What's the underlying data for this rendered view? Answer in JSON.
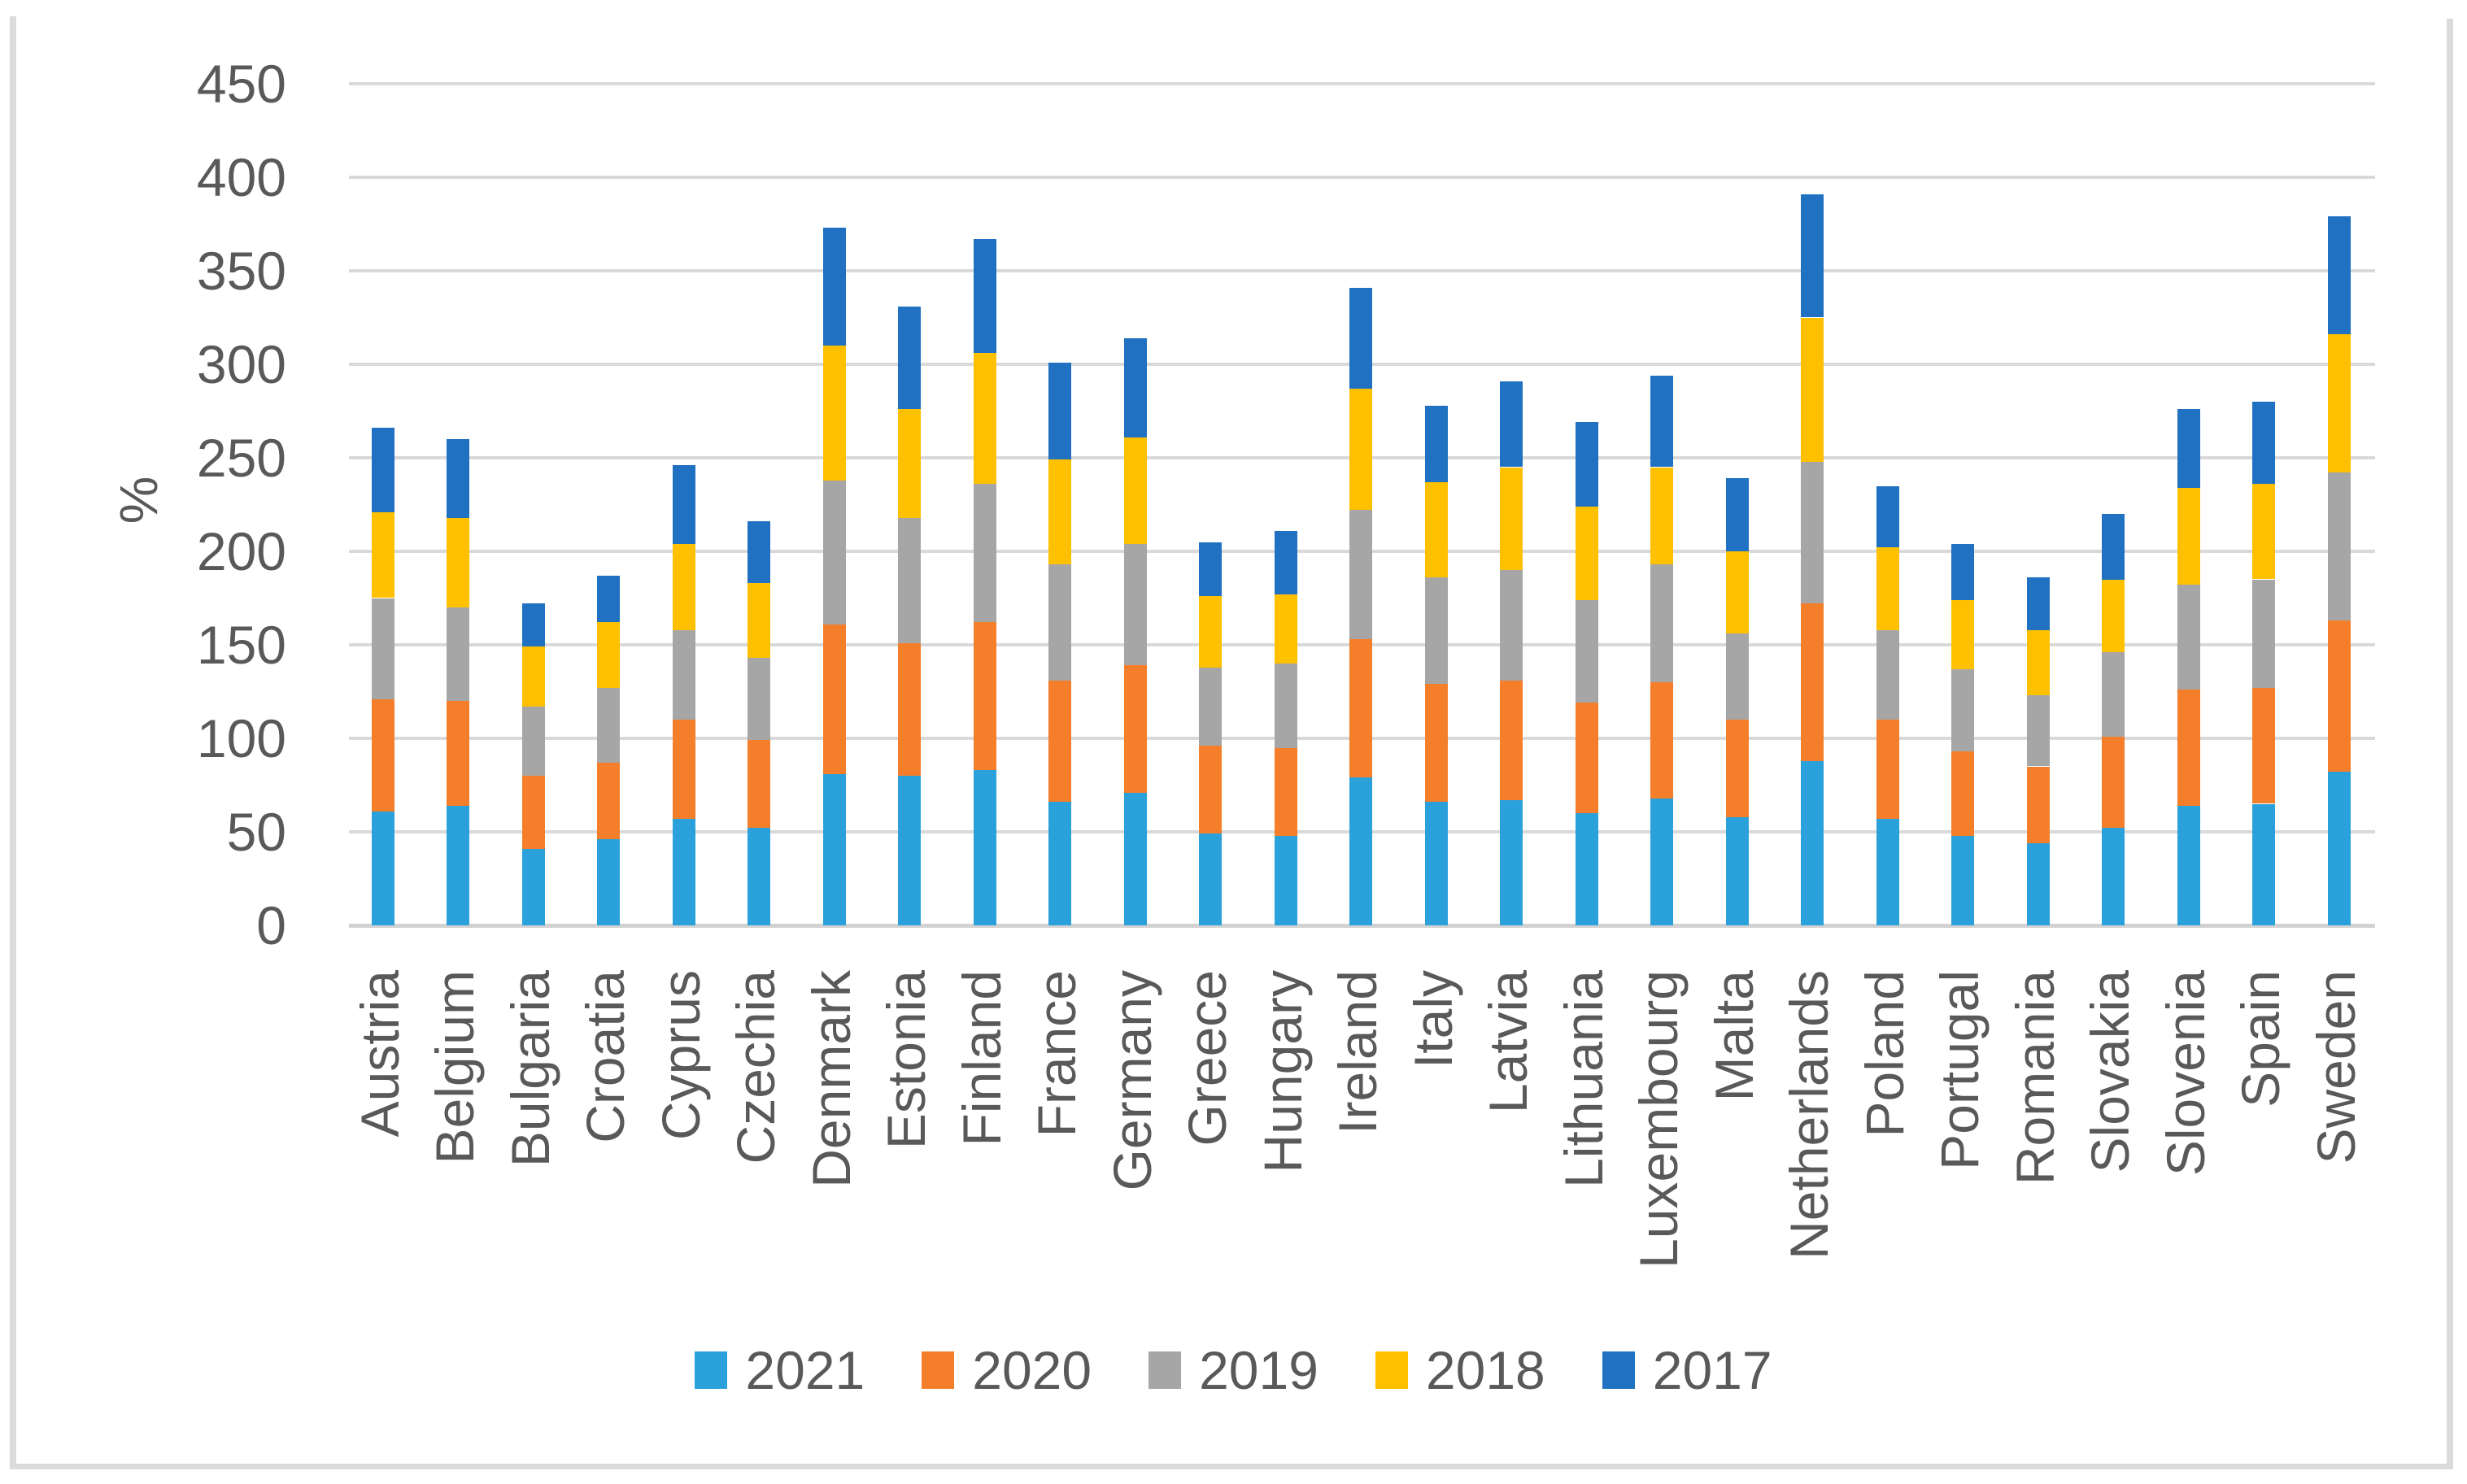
{
  "page": {
    "background": "#ffffff",
    "frame_color": "#dbdbdb",
    "text_color": "#595959",
    "gridline_color": "#d9d9d9"
  },
  "chart_data": {
    "type": "bar",
    "stacked": true,
    "title": "",
    "xlabel": "",
    "ylabel": "%",
    "ylim": [
      0,
      450
    ],
    "yticks": [
      0,
      50,
      100,
      150,
      200,
      250,
      300,
      350,
      400,
      450
    ],
    "grid": true,
    "legend_position": "bottom",
    "categories": [
      "Austria",
      "Belgium",
      "Bulgaria",
      "Croatia",
      "Cyprus",
      "Czechia",
      "Denmark",
      "Estonia",
      "Finland",
      "France",
      "Germany",
      "Greece",
      "Hungary",
      "Ireland",
      "Italy",
      "Latvia",
      "Lithuania",
      "Luxembourg",
      "Malta",
      "Netherlands",
      "Poland",
      "Portugal",
      "Romania",
      "Slovakia",
      "Slovenia",
      "Spain",
      "Sweden"
    ],
    "series": [
      {
        "name": "2021",
        "color": "#2BA1DB",
        "values": [
          61,
          64,
          41,
          46,
          57,
          52,
          81,
          80,
          83,
          66,
          71,
          49,
          48,
          79,
          66,
          67,
          60,
          68,
          58,
          88,
          57,
          48,
          44,
          52,
          64,
          65,
          82
        ]
      },
      {
        "name": "2020",
        "color": "#F57E2A",
        "values": [
          60,
          56,
          39,
          41,
          53,
          47,
          80,
          71,
          79,
          65,
          68,
          47,
          47,
          74,
          63,
          64,
          59,
          62,
          52,
          84,
          53,
          45,
          41,
          49,
          62,
          62,
          81
        ]
      },
      {
        "name": "2019",
        "color": "#A6A6A6",
        "values": [
          54,
          50,
          37,
          40,
          48,
          44,
          77,
          67,
          74,
          62,
          65,
          42,
          45,
          69,
          57,
          59,
          55,
          63,
          46,
          76,
          48,
          44,
          38,
          45,
          56,
          58,
          79
        ]
      },
      {
        "name": "2018",
        "color": "#FFC000",
        "values": [
          46,
          48,
          32,
          35,
          46,
          40,
          72,
          58,
          70,
          56,
          57,
          38,
          37,
          65,
          51,
          55,
          50,
          52,
          44,
          77,
          44,
          37,
          35,
          39,
          52,
          51,
          74
        ]
      },
      {
        "name": "2017",
        "color": "#2071C1",
        "values": [
          45,
          42,
          23,
          25,
          42,
          33,
          63,
          55,
          61,
          52,
          53,
          29,
          34,
          54,
          41,
          46,
          45,
          49,
          39,
          66,
          33,
          30,
          28,
          35,
          42,
          44,
          63
        ]
      }
    ]
  }
}
